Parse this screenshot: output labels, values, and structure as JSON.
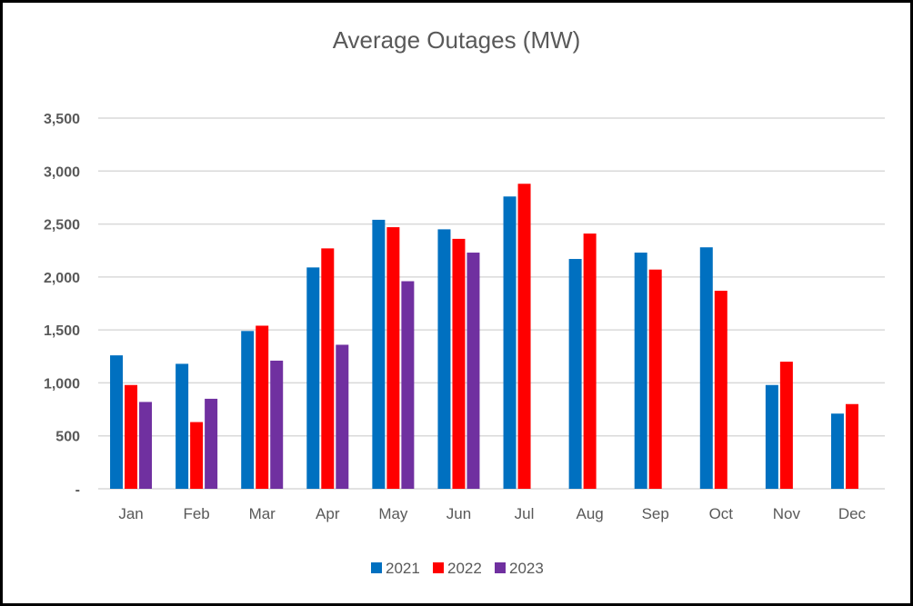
{
  "chart_data": {
    "type": "bar",
    "title": "Average Outages (MW)",
    "xlabel": "",
    "ylabel": "",
    "categories": [
      "Jan",
      "Feb",
      "Mar",
      "Apr",
      "May",
      "Jun",
      "Jul",
      "Aug",
      "Sep",
      "Oct",
      "Nov",
      "Dec"
    ],
    "series": [
      {
        "name": "2021",
        "color": "#0070C0",
        "values": [
          1260,
          1180,
          1490,
          2090,
          2540,
          2450,
          2760,
          2170,
          2230,
          2280,
          980,
          710
        ]
      },
      {
        "name": "2022",
        "color": "#FF0000",
        "values": [
          980,
          630,
          1540,
          2270,
          2470,
          2360,
          2880,
          2410,
          2070,
          1870,
          1200,
          800
        ]
      },
      {
        "name": "2023",
        "color": "#7030A0",
        "values": [
          820,
          850,
          1210,
          1360,
          1960,
          2230,
          null,
          null,
          null,
          null,
          null,
          null
        ]
      }
    ],
    "ylim": [
      0,
      3500
    ],
    "yticks": [
      0,
      500,
      1000,
      1500,
      2000,
      2500,
      3000,
      3500
    ],
    "ytick_labels": [
      "-",
      "500",
      "1,000",
      "1,500",
      "2,000",
      "2,500",
      "3,000",
      "3,500"
    ],
    "grid": true,
    "legend": "bottom"
  }
}
